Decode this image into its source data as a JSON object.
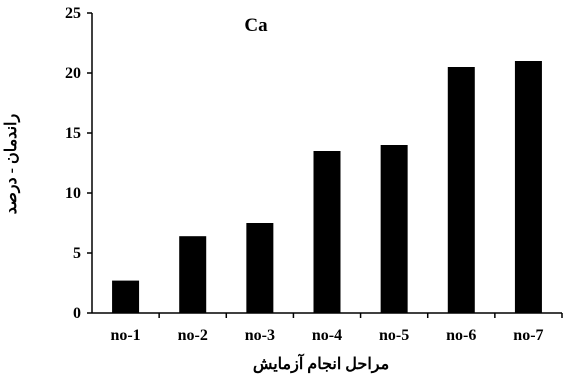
{
  "chart_data": {
    "type": "bar",
    "title": "Ca",
    "xlabel": "مراحل انجام آزمایش",
    "ylabel": "راندمان - درصد",
    "categories": [
      "no-1",
      "no-2",
      "no-3",
      "no-4",
      "no-5",
      "no-6",
      "no-7"
    ],
    "values": [
      2.7,
      6.4,
      7.5,
      13.5,
      14.0,
      20.5,
      21.0
    ],
    "ylim": [
      0,
      25
    ],
    "yticks": [
      "0",
      "5",
      "10",
      "15",
      "20",
      "25"
    ],
    "grid": false,
    "legend": "none",
    "bar_color": "#000000"
  }
}
